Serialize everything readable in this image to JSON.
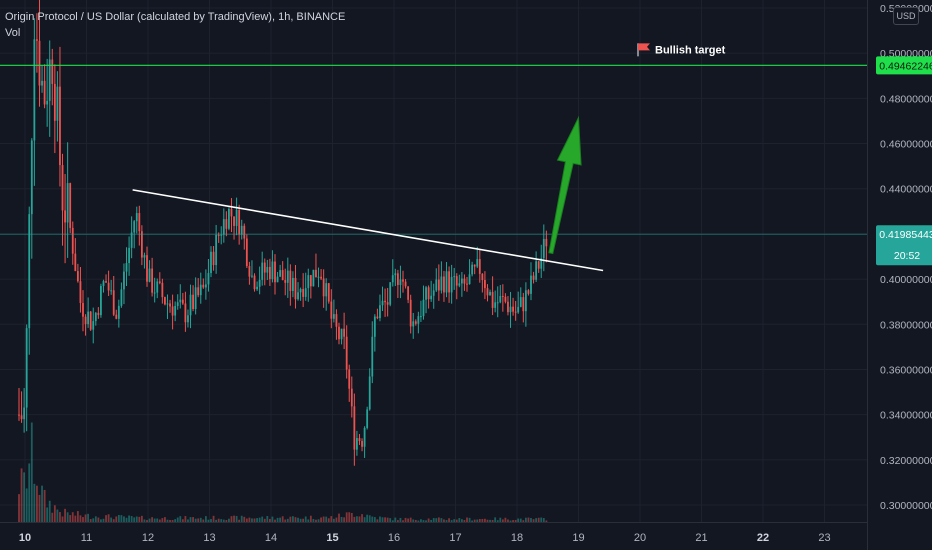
{
  "header": {
    "title": "Origin Protocol / US Dollar (calculated by TradingView), 1h, BINANCE",
    "vol_label": "Vol"
  },
  "currency_button": "USD",
  "chart_data": {
    "type": "candlestick",
    "symbol": "OGN/USD",
    "interval": "1h",
    "exchange": "BINANCE",
    "x_ticks": [
      {
        "label": "10",
        "day": 10,
        "bold": true
      },
      {
        "label": "11",
        "day": 11
      },
      {
        "label": "12",
        "day": 12
      },
      {
        "label": "13",
        "day": 13
      },
      {
        "label": "14",
        "day": 14
      },
      {
        "label": "15",
        "day": 15,
        "bold": true
      },
      {
        "label": "16",
        "day": 16
      },
      {
        "label": "17",
        "day": 17
      },
      {
        "label": "18",
        "day": 18
      },
      {
        "label": "19",
        "day": 19
      },
      {
        "label": "20",
        "day": 20
      },
      {
        "label": "21",
        "day": 21
      },
      {
        "label": "22",
        "day": 22,
        "bold": true
      },
      {
        "label": "23",
        "day": 23
      }
    ],
    "y_ticks": [
      "0.52000000",
      "0.50000000",
      "0.48000000",
      "0.46000000",
      "0.44000000",
      "0.42000000",
      "0.40000000",
      "0.38000000",
      "0.36000000",
      "0.34000000",
      "0.32000000",
      "0.30000000"
    ],
    "price_anchors": [
      [
        10.0,
        0.34
      ],
      [
        10.15,
        0.52
      ],
      [
        10.3,
        0.48
      ],
      [
        10.45,
        0.5
      ],
      [
        10.6,
        0.44
      ],
      [
        10.75,
        0.42
      ],
      [
        10.9,
        0.39
      ],
      [
        11.1,
        0.38
      ],
      [
        11.3,
        0.4
      ],
      [
        11.5,
        0.385
      ],
      [
        11.8,
        0.43
      ],
      [
        12.0,
        0.4
      ],
      [
        12.3,
        0.39
      ],
      [
        12.6,
        0.385
      ],
      [
        12.9,
        0.395
      ],
      [
        13.15,
        0.42
      ],
      [
        13.3,
        0.43
      ],
      [
        13.5,
        0.425
      ],
      [
        13.7,
        0.4
      ],
      [
        14.0,
        0.405
      ],
      [
        14.4,
        0.395
      ],
      [
        14.8,
        0.405
      ],
      [
        15.0,
        0.38
      ],
      [
        15.2,
        0.37
      ],
      [
        15.35,
        0.33
      ],
      [
        15.5,
        0.33
      ],
      [
        15.7,
        0.385
      ],
      [
        15.9,
        0.39
      ],
      [
        16.1,
        0.405
      ],
      [
        16.3,
        0.38
      ],
      [
        16.5,
        0.39
      ],
      [
        16.8,
        0.4
      ],
      [
        17.1,
        0.395
      ],
      [
        17.4,
        0.405
      ],
      [
        17.6,
        0.39
      ],
      [
        17.8,
        0.39
      ],
      [
        18.0,
        0.385
      ],
      [
        18.2,
        0.395
      ],
      [
        18.4,
        0.41
      ],
      [
        18.5,
        0.42
      ]
    ],
    "volume_shape": [
      [
        10.0,
        0.5
      ],
      [
        10.1,
        0.9
      ],
      [
        10.3,
        0.3
      ],
      [
        10.6,
        0.12
      ],
      [
        11.0,
        0.08
      ],
      [
        12.0,
        0.05
      ],
      [
        15.0,
        0.06
      ],
      [
        15.4,
        0.12
      ],
      [
        15.7,
        0.06
      ],
      [
        16.0,
        0.04
      ],
      [
        18.5,
        0.04
      ]
    ],
    "last_price": {
      "label": "0.41985443",
      "value": 0.41985443,
      "color": "#26a69a"
    },
    "countdown": "20:52",
    "target": {
      "label": "0.49462246",
      "value": 0.49462246,
      "color": "#1fe04a",
      "annotation": "Bullish target"
    },
    "trendline": {
      "from": {
        "day": 11.75,
        "price": 0.4395
      },
      "to": {
        "day": 19.4,
        "price": 0.4038
      },
      "color": "#ffffff"
    },
    "arrow": {
      "from": {
        "day": 18.55,
        "price": 0.4115
      },
      "to": {
        "day": 19.0,
        "price": 0.4715
      },
      "color": "#27a82b"
    },
    "colors": {
      "up": "#26a69a",
      "down": "#ef5350",
      "background": "#131722",
      "grid": "#1e222d"
    }
  }
}
